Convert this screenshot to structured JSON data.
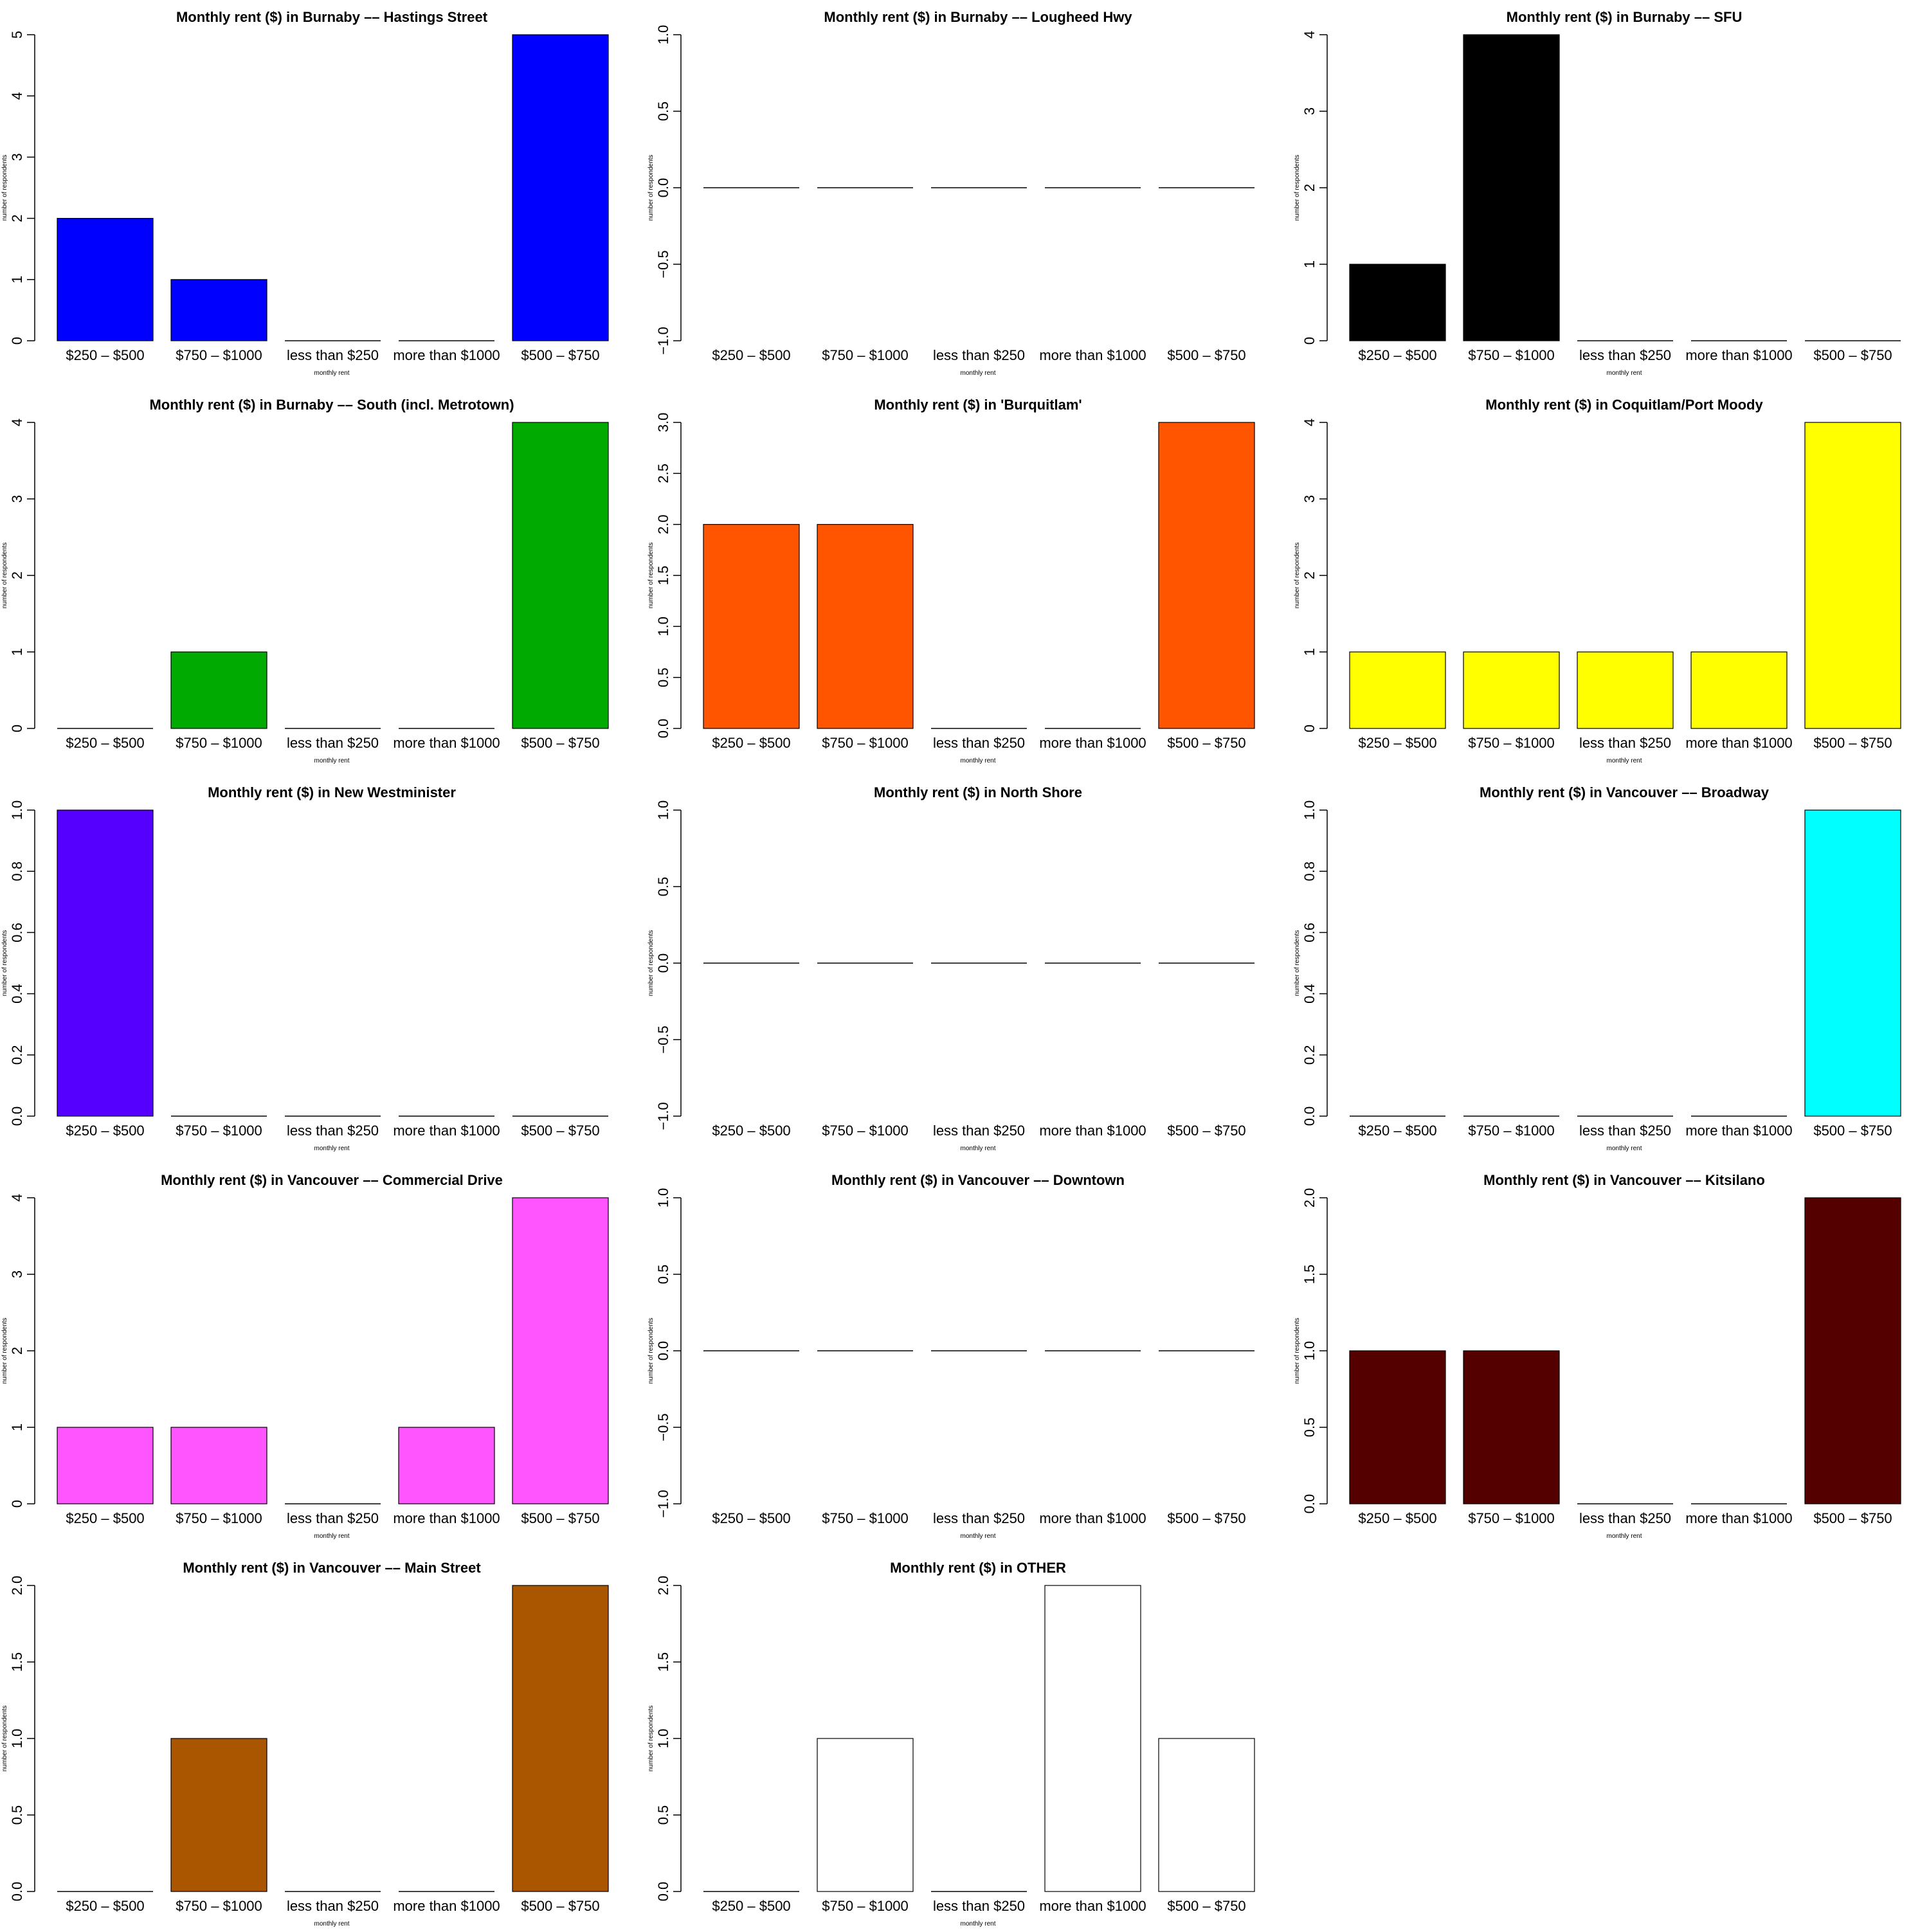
{
  "figure": {
    "categories": [
      "$250 – $500",
      "$750 – $1000",
      "less than $250",
      "more than $1000",
      "$500 – $750"
    ],
    "xlabel": "monthly rent",
    "ylabel": "number of respondents"
  },
  "chart_data": [
    {
      "type": "bar",
      "title": "Monthly rent ($) in Burnaby –– Hastings Street",
      "values": [
        2,
        1,
        0,
        0,
        5
      ],
      "ylim": [
        0,
        5
      ],
      "yticks": [
        "0",
        "1",
        "2",
        "3",
        "4",
        "5"
      ],
      "color": "#0000FF"
    },
    {
      "type": "bar",
      "title": "Monthly rent ($) in Burnaby –– Lougheed Hwy",
      "values": [
        0,
        0,
        0,
        0,
        0
      ],
      "ylim": [
        -1,
        1
      ],
      "yticks": [
        "−1.0",
        "−0.5",
        "0.0",
        "0.5",
        "1.0"
      ],
      "color": "#FFFFFF"
    },
    {
      "type": "bar",
      "title": "Monthly rent ($) in Burnaby –– SFU",
      "values": [
        1,
        4,
        0,
        0,
        0
      ],
      "ylim": [
        0,
        4
      ],
      "yticks": [
        "0",
        "1",
        "2",
        "3",
        "4"
      ],
      "color": "#000000"
    },
    {
      "type": "bar",
      "title": "Monthly rent ($) in Burnaby –– South (incl. Metrotown)",
      "values": [
        0,
        1,
        0,
        0,
        4
      ],
      "ylim": [
        0,
        4
      ],
      "yticks": [
        "0",
        "1",
        "2",
        "3",
        "4"
      ],
      "color": "#00AA00"
    },
    {
      "type": "bar",
      "title": "Monthly rent ($) in 'Burquitlam'",
      "values": [
        2,
        2,
        0,
        0,
        3
      ],
      "ylim": [
        0,
        3
      ],
      "yticks": [
        "0.0",
        "0.5",
        "1.0",
        "1.5",
        "2.0",
        "2.5",
        "3.0"
      ],
      "color": "#FF5500"
    },
    {
      "type": "bar",
      "title": "Monthly rent ($) in Coquitlam/Port Moody",
      "values": [
        1,
        1,
        1,
        1,
        4
      ],
      "ylim": [
        0,
        4
      ],
      "yticks": [
        "0",
        "1",
        "2",
        "3",
        "4"
      ],
      "color": "#FFFF00"
    },
    {
      "type": "bar",
      "title": "Monthly rent ($) in New Westminister",
      "values": [
        1,
        0,
        0,
        0,
        0
      ],
      "ylim": [
        0,
        1
      ],
      "yticks": [
        "0.0",
        "0.2",
        "0.4",
        "0.6",
        "0.8",
        "1.0"
      ],
      "color": "#5500FF"
    },
    {
      "type": "bar",
      "title": "Monthly rent ($) in North Shore",
      "values": [
        0,
        0,
        0,
        0,
        0
      ],
      "ylim": [
        -1,
        1
      ],
      "yticks": [
        "−1.0",
        "−0.5",
        "0.0",
        "0.5",
        "1.0"
      ],
      "color": "#FFFFFF"
    },
    {
      "type": "bar",
      "title": "Monthly rent ($) in Vancouver –– Broadway",
      "values": [
        0,
        0,
        0,
        0,
        1
      ],
      "ylim": [
        0,
        1
      ],
      "yticks": [
        "0.0",
        "0.2",
        "0.4",
        "0.6",
        "0.8",
        "1.0"
      ],
      "color": "#00FFFF"
    },
    {
      "type": "bar",
      "title": "Monthly rent ($) in Vancouver –– Commercial Drive",
      "values": [
        1,
        1,
        0,
        1,
        4
      ],
      "ylim": [
        0,
        4
      ],
      "yticks": [
        "0",
        "1",
        "2",
        "3",
        "4"
      ],
      "color": "#FF55FF"
    },
    {
      "type": "bar",
      "title": "Monthly rent ($) in Vancouver –– Downtown",
      "values": [
        0,
        0,
        0,
        0,
        0
      ],
      "ylim": [
        -1,
        1
      ],
      "yticks": [
        "−1.0",
        "−0.5",
        "0.0",
        "0.5",
        "1.0"
      ],
      "color": "#FFFFFF"
    },
    {
      "type": "bar",
      "title": "Monthly rent ($) in Vancouver –– Kitsilano",
      "values": [
        1,
        1,
        0,
        0,
        2
      ],
      "ylim": [
        0,
        2
      ],
      "yticks": [
        "0.0",
        "0.5",
        "1.0",
        "1.5",
        "2.0"
      ],
      "color": "#550000"
    },
    {
      "type": "bar",
      "title": "Monthly rent ($) in Vancouver –– Main Street",
      "values": [
        0,
        1,
        0,
        0,
        2
      ],
      "ylim": [
        0,
        2
      ],
      "yticks": [
        "0.0",
        "0.5",
        "1.0",
        "1.5",
        "2.0"
      ],
      "color": "#AA5500"
    },
    {
      "type": "bar",
      "title": "Monthly rent ($) in OTHER",
      "values": [
        0,
        1,
        0,
        2,
        1
      ],
      "ylim": [
        0,
        2
      ],
      "yticks": [
        "0.0",
        "0.5",
        "1.0",
        "1.5",
        "2.0"
      ],
      "color": "#FFFFFF"
    }
  ]
}
